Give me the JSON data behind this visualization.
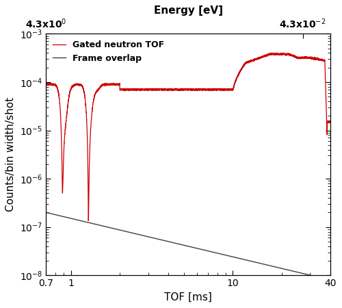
{
  "xlim": [
    0.7,
    40
  ],
  "ylim": [
    1e-08,
    0.001
  ],
  "xlabel": "TOF [ms]",
  "ylabel": "Counts/bin width/shot",
  "top_xlabel": "Energy [eV]",
  "legend_labels": [
    "Gated neutron TOF",
    "Frame overlap"
  ],
  "line_red_color": "#cc0000",
  "line_black_color": "#404040",
  "axis_fontsize": 11,
  "tick_fontsize": 10,
  "legend_fontsize": 9
}
